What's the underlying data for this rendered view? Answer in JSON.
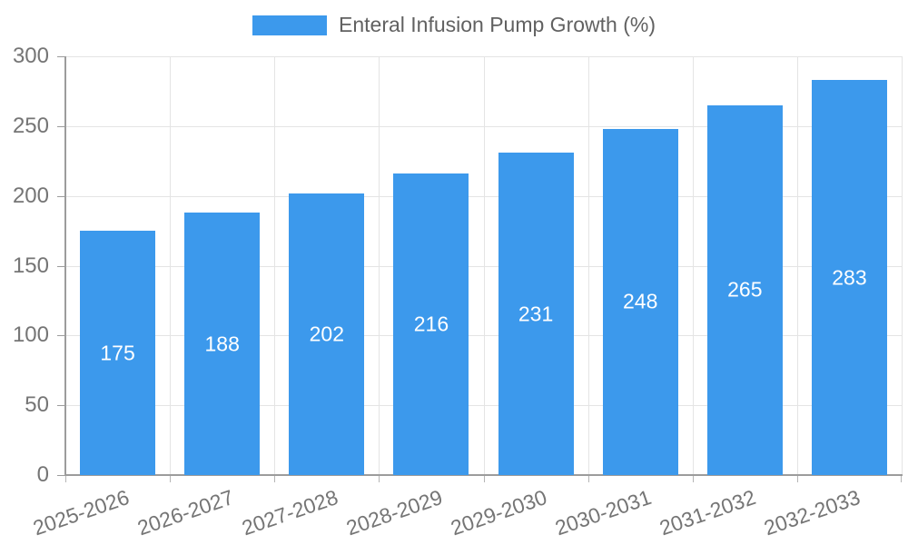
{
  "legend": {
    "label": "Enteral Infusion Pump Growth (%)",
    "swatch_color": "#3c99ec"
  },
  "chart_data": {
    "type": "bar",
    "title": "",
    "series_name": "Enteral Infusion Pump Growth (%)",
    "categories": [
      "2025-2026",
      "2026-2027",
      "2027-2028",
      "2028-2029",
      "2029-2030",
      "2030-2031",
      "2031-2032",
      "2032-2033"
    ],
    "values": [
      175,
      188,
      202,
      216,
      231,
      248,
      265,
      283
    ],
    "xlabel": "",
    "ylabel": "",
    "ylim": [
      0,
      300
    ],
    "yticks": [
      0,
      50,
      100,
      150,
      200,
      250,
      300
    ],
    "grid": true,
    "legend_position": "top",
    "bar_color": "#3c99ec",
    "value_label_color": "#ffffff",
    "axis_text_color": "#757575"
  }
}
